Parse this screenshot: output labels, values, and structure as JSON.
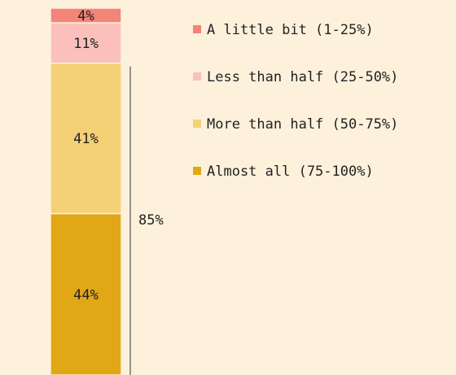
{
  "chart_data": {
    "type": "bar",
    "stacked": true,
    "ylim": [
      0,
      100
    ],
    "series": [
      {
        "name": "A little bit (1-25%)",
        "color": "#f4837a",
        "values": [
          4
        ],
        "value_labels": [
          "4%"
        ]
      },
      {
        "name": "Less than half (25-50%)",
        "color": "#fbc0bb",
        "values": [
          11
        ],
        "value_labels": [
          "11%"
        ]
      },
      {
        "name": "More than half (50-75%)",
        "color": "#f4d077",
        "values": [
          41
        ],
        "value_labels": [
          "41%"
        ]
      },
      {
        "name": "Almost all (75-100%)",
        "color": "#e1a716",
        "values": [
          44
        ],
        "value_labels": [
          "44%"
        ]
      }
    ],
    "annotations": [
      {
        "text": "85%"
      }
    ]
  }
}
